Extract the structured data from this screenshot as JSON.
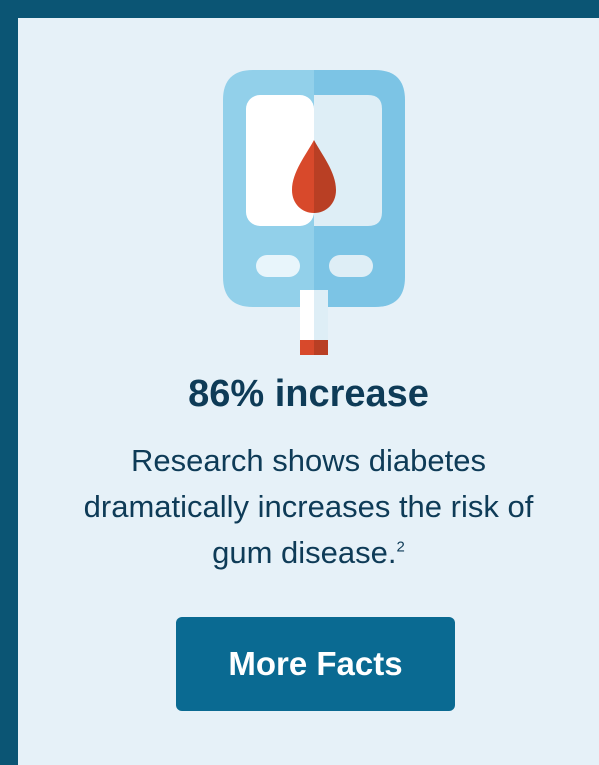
{
  "stat": {
    "headline": "86% increase",
    "description": "Research shows diabetes dramatically increases the risk of gum disease.",
    "footnote": "2"
  },
  "cta": {
    "label": "More Facts"
  },
  "colors": {
    "frame": "#0b5574",
    "card_background": "#e6f1f8",
    "headline_text": "#0e3b57",
    "button_background": "#0a6a92",
    "button_text": "#ffffff",
    "meter_light": "#92d0ea",
    "meter_dark": "#7cc4e5",
    "blood_drop": "#d8492b"
  },
  "illustration": {
    "icon": "glucose-meter-icon"
  }
}
